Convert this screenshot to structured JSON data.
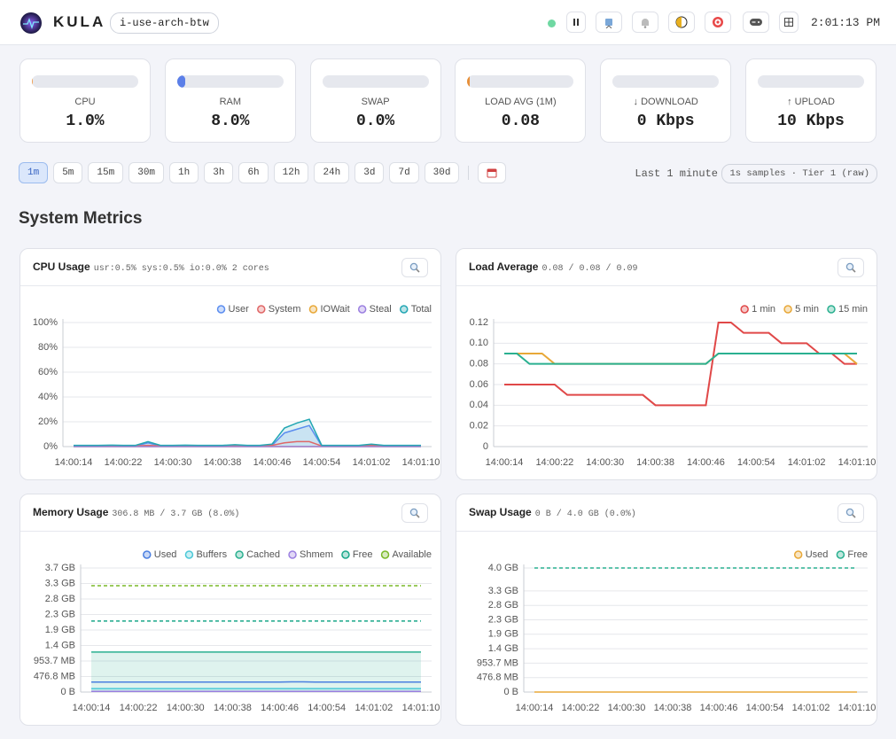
{
  "header": {
    "brand": "KULA",
    "host": "i-use-arch-btw",
    "clock": "2:01:13 PM"
  },
  "cards": [
    {
      "label": "CPU",
      "value": "1.0%",
      "gauge": 1,
      "color": "#f0a35a"
    },
    {
      "label": "RAM",
      "value": "8.0%",
      "gauge": 8,
      "color": "#5b7fe8"
    },
    {
      "label": "SWAP",
      "value": "0.0%",
      "gauge": 0,
      "color": "#5b7fe8"
    },
    {
      "label": "LOAD AVG (1M)",
      "value": "0.08",
      "gauge": 2,
      "color": "#e8903a"
    },
    {
      "label": "↓ DOWNLOAD",
      "value": "0 Kbps",
      "gauge": 0,
      "color": "#5b7fe8"
    },
    {
      "label": "↑ UPLOAD",
      "value": "10 Kbps",
      "gauge": 0,
      "color": "#5b7fe8"
    }
  ],
  "ranges": {
    "options": [
      "1m",
      "5m",
      "15m",
      "30m",
      "1h",
      "3h",
      "6h",
      "12h",
      "24h",
      "3d",
      "7d",
      "30d"
    ],
    "active": 0,
    "description": "Last 1 minute",
    "resolution": "1s samples · Tier 1 (raw)"
  },
  "section_title": "System Metrics",
  "panels": [
    {
      "title": "CPU Usage",
      "subtitle": "usr:0.5% sys:0.5% io:0.0% 2 cores",
      "chart": {
        "type": "line",
        "grid": true,
        "categories": [
          "14:00:14",
          null,
          null,
          null,
          "14:00:22",
          null,
          null,
          null,
          "14:00:30",
          null,
          null,
          null,
          "14:00:38",
          null,
          null,
          null,
          "14:00:46",
          null,
          null,
          null,
          "14:00:54",
          null,
          null,
          null,
          "14:01:02",
          null,
          null,
          null,
          "14:01:10"
        ],
        "ylim": [
          0,
          100
        ],
        "yticks": [
          {
            "value": 0,
            "label": "0%"
          },
          {
            "value": 20,
            "label": "20%"
          },
          {
            "value": 40,
            "label": "40%"
          },
          {
            "value": 60,
            "label": "60%"
          },
          {
            "value": 80,
            "label": "80%"
          },
          {
            "value": 100,
            "label": "100%"
          }
        ],
        "series": [
          {
            "name": "User",
            "color": "#5b8def",
            "fill": true,
            "values": [
              0.5,
              0.5,
              0.5,
              0.6,
              0.5,
              0.5,
              3,
              0.5,
              0.5,
              0.6,
              0.5,
              0.5,
              0.5,
              1,
              0.5,
              0.5,
              1,
              11,
              14,
              17,
              0.5,
              0.5,
              0.5,
              0.5,
              1,
              0.5,
              0.5,
              0.5,
              0.5
            ]
          },
          {
            "name": "System",
            "color": "#e06666",
            "values": [
              0.5,
              0.5,
              0.5,
              0.6,
              0.5,
              0.5,
              1,
              0.5,
              0.5,
              0.6,
              0.5,
              0.5,
              0.5,
              0.5,
              0.5,
              0.5,
              1,
              3,
              4,
              4,
              0.5,
              0.5,
              0.5,
              0.5,
              1,
              0.5,
              0.5,
              0.5,
              0.5
            ]
          },
          {
            "name": "IOWait",
            "color": "#e8a838",
            "values": [
              0,
              0,
              0,
              0,
              0,
              0,
              0,
              0,
              0,
              0,
              0,
              0,
              0,
              0,
              0,
              0,
              0,
              0,
              0,
              0,
              0,
              0,
              0,
              0,
              0,
              0,
              0,
              0,
              0
            ]
          },
          {
            "name": "Steal",
            "color": "#9b7fe0",
            "values": [
              0,
              0,
              0,
              0,
              0,
              0,
              0,
              0,
              0,
              0,
              0,
              0,
              0,
              0,
              0,
              0,
              0,
              0,
              0,
              0,
              0,
              0,
              0,
              0,
              0,
              0,
              0,
              0,
              0
            ]
          },
          {
            "name": "Total",
            "color": "#22a6b3",
            "fill": true,
            "values": [
              1,
              1,
              1,
              1.2,
              1,
              1,
              4,
              1,
              1,
              1.2,
              1,
              1,
              1,
              1.5,
              1,
              1,
              2,
              15,
              19,
              22,
              1,
              1,
              1,
              1,
              2,
              1,
              1,
              1,
              1
            ]
          }
        ]
      }
    },
    {
      "title": "Load Average",
      "subtitle": "0.08 / 0.08 / 0.09",
      "chart": {
        "type": "line",
        "grid": true,
        "categories": [
          "14:00:14",
          null,
          null,
          null,
          "14:00:22",
          null,
          null,
          null,
          "14:00:30",
          null,
          null,
          null,
          "14:00:38",
          null,
          null,
          null,
          "14:00:46",
          null,
          null,
          null,
          "14:00:54",
          null,
          null,
          null,
          "14:01:02",
          null,
          null,
          null,
          "14:01:10"
        ],
        "ylim": [
          0,
          0.12
        ],
        "yticks": [
          0,
          0.02,
          0.04,
          0.06,
          0.08,
          {
            "value": 0.1,
            "label": "0.10"
          },
          0.12
        ],
        "series": [
          {
            "name": "1 min",
            "color": "#e04848",
            "values": [
              0.06,
              0.06,
              0.06,
              0.06,
              0.06,
              0.05,
              0.05,
              0.05,
              0.05,
              0.05,
              0.05,
              0.05,
              0.04,
              0.04,
              0.04,
              0.04,
              0.04,
              0.12,
              0.12,
              0.11,
              0.11,
              0.11,
              0.1,
              0.1,
              0.1,
              0.09,
              0.09,
              0.08,
              0.08
            ]
          },
          {
            "name": "5 min",
            "color": "#e8a838",
            "values": [
              0.09,
              0.09,
              0.09,
              0.09,
              0.08,
              0.08,
              0.08,
              0.08,
              0.08,
              0.08,
              0.08,
              0.08,
              0.08,
              0.08,
              0.08,
              0.08,
              0.08,
              0.09,
              0.09,
              0.09,
              0.09,
              0.09,
              0.09,
              0.09,
              0.09,
              0.09,
              0.09,
              0.09,
              0.08
            ]
          },
          {
            "name": "15 min",
            "color": "#2ab090",
            "values": [
              0.09,
              0.09,
              0.08,
              0.08,
              0.08,
              0.08,
              0.08,
              0.08,
              0.08,
              0.08,
              0.08,
              0.08,
              0.08,
              0.08,
              0.08,
              0.08,
              0.08,
              0.09,
              0.09,
              0.09,
              0.09,
              0.09,
              0.09,
              0.09,
              0.09,
              0.09,
              0.09,
              0.09,
              0.09
            ]
          }
        ]
      }
    },
    {
      "title": "Memory Usage",
      "subtitle": "306.8 MB / 3.7 GB (8.0%)",
      "chart": {
        "type": "line",
        "grid": true,
        "categories": [
          "14:00:14",
          null,
          null,
          null,
          "14:00:22",
          null,
          null,
          null,
          "14:00:30",
          null,
          null,
          null,
          "14:00:38",
          null,
          null,
          null,
          "14:00:46",
          null,
          null,
          null,
          "14:00:54",
          null,
          null,
          null,
          "14:01:02",
          null,
          null,
          null,
          "14:01:10"
        ],
        "ylim": [
          0,
          4000000000
        ],
        "yticks": [
          {
            "value": 0,
            "label": "0 B"
          },
          {
            "value": 500000000,
            "label": "476.8 MB"
          },
          {
            "value": 1000000000,
            "label": "953.7 MB"
          },
          {
            "value": 1500000000,
            "label": "1.4 GB"
          },
          {
            "value": 2000000000,
            "label": "1.9 GB"
          },
          {
            "value": 2500000000,
            "label": "2.3 GB"
          },
          {
            "value": 3000000000,
            "label": "2.8 GB"
          },
          {
            "value": 3500000000,
            "label": "3.3 GB"
          },
          {
            "value": 4000000000,
            "label": "3.7 GB"
          }
        ],
        "series": [
          {
            "name": "Used",
            "color": "#4a7fe0",
            "values": [
              321700000,
              321700000,
              321700000,
              321700000,
              321700000,
              321700000,
              321700000,
              321700000,
              321700000,
              321700000,
              321700000,
              321700000,
              321700000,
              321700000,
              321700000,
              321700000,
              321700000,
              330000000,
              330000000,
              321700000,
              321700000,
              321700000,
              321700000,
              321700000,
              321700000,
              321700000,
              321700000,
              321700000,
              321700000
            ]
          },
          {
            "name": "Buffers",
            "color": "#4cc9d8",
            "fill": true,
            "values": [
              110000000,
              110000000,
              110000000,
              110000000,
              110000000,
              110000000,
              110000000,
              110000000,
              110000000,
              110000000,
              110000000,
              110000000,
              110000000,
              110000000,
              110000000,
              110000000,
              110000000,
              110000000,
              110000000,
              110000000,
              110000000,
              110000000,
              110000000,
              110000000,
              110000000,
              110000000,
              110000000,
              110000000,
              110000000
            ]
          },
          {
            "name": "Cached",
            "color": "#2ab090",
            "fill": true,
            "values": [
              1290000000,
              1290000000,
              1290000000,
              1290000000,
              1290000000,
              1290000000,
              1290000000,
              1290000000,
              1290000000,
              1290000000,
              1290000000,
              1290000000,
              1290000000,
              1290000000,
              1290000000,
              1290000000,
              1290000000,
              1290000000,
              1290000000,
              1290000000,
              1290000000,
              1290000000,
              1290000000,
              1290000000,
              1290000000,
              1290000000,
              1290000000,
              1290000000,
              1290000000
            ]
          },
          {
            "name": "Shmem",
            "color": "#9b7fe0",
            "values": [
              20000000,
              20000000,
              20000000,
              20000000,
              20000000,
              20000000,
              20000000,
              20000000,
              20000000,
              20000000,
              20000000,
              20000000,
              20000000,
              20000000,
              20000000,
              20000000,
              20000000,
              20000000,
              20000000,
              20000000,
              20000000,
              20000000,
              20000000,
              20000000,
              20000000,
              20000000,
              20000000,
              20000000,
              20000000
            ]
          },
          {
            "name": "Free",
            "color": "#1aa88a",
            "dashed": true,
            "values": [
              2290000000,
              2290000000,
              2290000000,
              2290000000,
              2290000000,
              2290000000,
              2290000000,
              2290000000,
              2290000000,
              2290000000,
              2290000000,
              2290000000,
              2290000000,
              2290000000,
              2290000000,
              2290000000,
              2290000000,
              2290000000,
              2290000000,
              2290000000,
              2290000000,
              2290000000,
              2290000000,
              2290000000,
              2290000000,
              2290000000,
              2290000000,
              2290000000,
              2290000000
            ]
          },
          {
            "name": "Available",
            "color": "#7ab828",
            "dashed": true,
            "values": [
              3430000000,
              3430000000,
              3430000000,
              3430000000,
              3430000000,
              3430000000,
              3430000000,
              3430000000,
              3430000000,
              3430000000,
              3430000000,
              3430000000,
              3430000000,
              3430000000,
              3430000000,
              3430000000,
              3430000000,
              3430000000,
              3430000000,
              3430000000,
              3430000000,
              3430000000,
              3430000000,
              3430000000,
              3430000000,
              3430000000,
              3430000000,
              3430000000,
              3430000000
            ]
          }
        ]
      }
    },
    {
      "title": "Swap Usage",
      "subtitle": "0 B / 4.0 GB (0.0%)",
      "chart": {
        "type": "line",
        "grid": true,
        "categories": [
          "14:00:14",
          null,
          null,
          null,
          "14:00:22",
          null,
          null,
          null,
          "14:00:30",
          null,
          null,
          null,
          "14:00:38",
          null,
          null,
          null,
          "14:00:46",
          null,
          null,
          null,
          "14:00:54",
          null,
          null,
          null,
          "14:01:02",
          null,
          null,
          null,
          "14:01:10"
        ],
        "ylim": [
          0,
          4294967296
        ],
        "yticks": [
          {
            "value": 0,
            "label": "0 B"
          },
          {
            "value": 500000000,
            "label": "476.8 MB"
          },
          {
            "value": 1000000000,
            "label": "953.7 MB"
          },
          {
            "value": 1500000000,
            "label": "1.4 GB"
          },
          {
            "value": 2000000000,
            "label": "1.9 GB"
          },
          {
            "value": 2500000000,
            "label": "2.3 GB"
          },
          {
            "value": 3000000000,
            "label": "2.8 GB"
          },
          {
            "value": 3500000000,
            "label": "3.3 GB"
          },
          {
            "value": 4294967296,
            "label": "4.0 GB"
          }
        ],
        "series": [
          {
            "name": "Used",
            "color": "#e8a838",
            "values": [
              0,
              0,
              0,
              0,
              0,
              0,
              0,
              0,
              0,
              0,
              0,
              0,
              0,
              0,
              0,
              0,
              0,
              0,
              0,
              0,
              0,
              0,
              0,
              0,
              0,
              0,
              0,
              0,
              0
            ]
          },
          {
            "name": "Free",
            "color": "#2ab090",
            "dashed": true,
            "values": [
              4294967296,
              4294967296,
              4294967296,
              4294967296,
              4294967296,
              4294967296,
              4294967296,
              4294967296,
              4294967296,
              4294967296,
              4294967296,
              4294967296,
              4294967296,
              4294967296,
              4294967296,
              4294967296,
              4294967296,
              4294967296,
              4294967296,
              4294967296,
              4294967296,
              4294967296,
              4294967296,
              4294967296,
              4294967296,
              4294967296,
              4294967296,
              4294967296,
              4294967296
            ]
          }
        ]
      }
    }
  ]
}
